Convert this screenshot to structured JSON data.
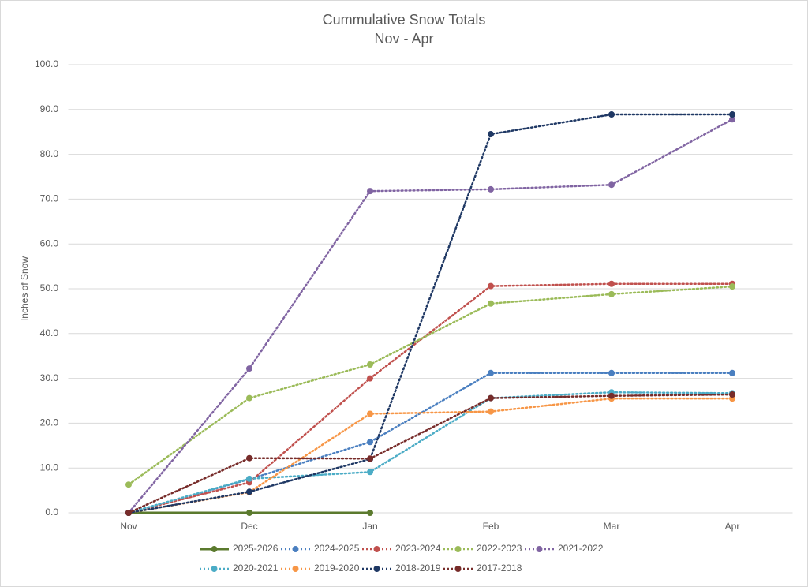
{
  "chart_data": {
    "type": "line",
    "title": "Cummulative Snow Totals",
    "subtitle": "Nov - Apr",
    "y_label": "Inches of Snow",
    "categories": [
      "Nov",
      "Dec",
      "Jan",
      "Feb",
      "Mar",
      "Apr"
    ],
    "ylim": [
      0,
      100
    ],
    "yticks": [
      {
        "value": 0,
        "label": "0.0"
      },
      {
        "value": 10,
        "label": "10.0"
      },
      {
        "value": 20,
        "label": "20.0"
      },
      {
        "value": 30,
        "label": "30.0"
      },
      {
        "value": 40,
        "label": "40.0"
      },
      {
        "value": 50,
        "label": "50.0"
      },
      {
        "value": 60,
        "label": "60.0"
      },
      {
        "value": 70,
        "label": "70.0"
      },
      {
        "value": 80,
        "label": "80.0"
      },
      {
        "value": 90,
        "label": "90.0"
      },
      {
        "value": 100,
        "label": "100.0"
      }
    ],
    "grid": true,
    "legend": "bottom",
    "series": [
      {
        "name": "2025-2026",
        "color": "#5b7a2e",
        "line_style": "solid",
        "values": [
          0,
          0,
          0,
          null,
          null,
          null
        ]
      },
      {
        "name": "2024-2025",
        "color": "#4a7fc0",
        "line_style": "dotted",
        "values": [
          0,
          7.5,
          15.8,
          31.2,
          31.2,
          31.2
        ]
      },
      {
        "name": "2023-2024",
        "color": "#c0504d",
        "line_style": "dotted",
        "values": [
          0,
          6.8,
          30.0,
          50.6,
          51.1,
          51.1
        ]
      },
      {
        "name": "2022-2023",
        "color": "#9bbb59",
        "line_style": "dotted",
        "values": [
          6.3,
          25.6,
          33.1,
          46.7,
          48.8,
          50.5
        ]
      },
      {
        "name": "2021-2022",
        "color": "#8064a2",
        "line_style": "dotted",
        "values": [
          0,
          32.2,
          71.8,
          72.2,
          73.2,
          87.8
        ]
      },
      {
        "name": "2020-2021",
        "color": "#4bacc6",
        "line_style": "dotted",
        "values": [
          0,
          7.6,
          9.1,
          25.6,
          26.9,
          26.7
        ]
      },
      {
        "name": "2019-2020",
        "color": "#f79646",
        "line_style": "dotted",
        "values": [
          0,
          4.6,
          22.1,
          22.6,
          25.5,
          25.5
        ]
      },
      {
        "name": "2018-2019",
        "color": "#1f3864",
        "line_style": "dotted",
        "values": [
          0,
          4.7,
          12.0,
          84.5,
          88.9,
          88.9
        ]
      },
      {
        "name": "2017-2018",
        "color": "#772c2a",
        "line_style": "dotted",
        "values": [
          0,
          12.2,
          12.1,
          25.6,
          26.1,
          26.4
        ]
      }
    ]
  }
}
